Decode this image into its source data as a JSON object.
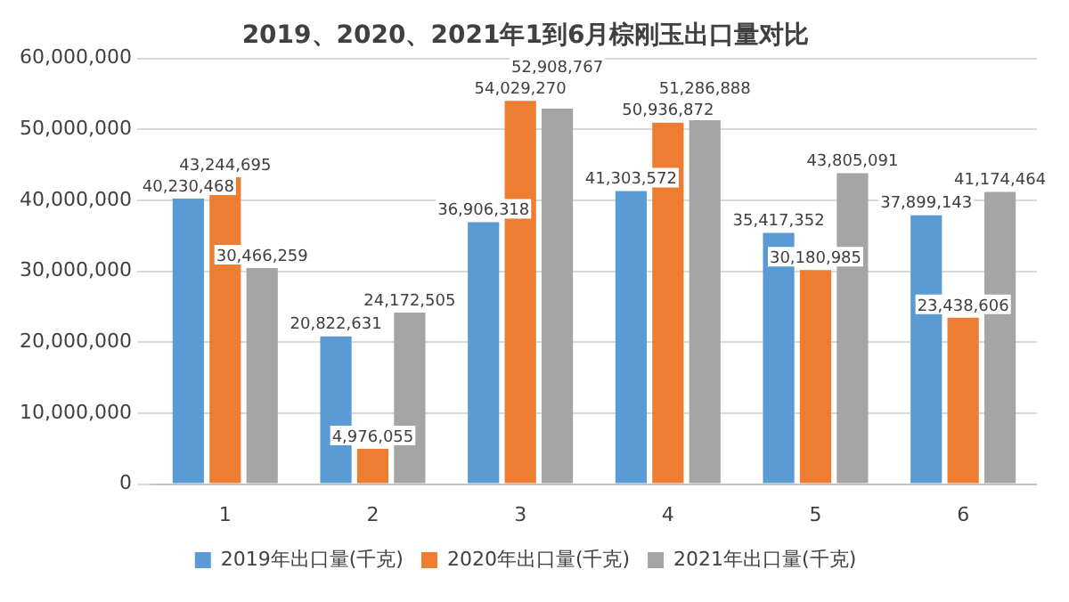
{
  "chart_data": {
    "type": "bar",
    "title": "2019、2020、2021年1到6月棕刚玉出口量对比",
    "categories": [
      "1",
      "2",
      "3",
      "4",
      "5",
      "6"
    ],
    "series": [
      {
        "name": "2019年出口量(千克)",
        "color": "#5b9bd5",
        "values": [
          40230468,
          20822631,
          36906318,
          41303572,
          35417352,
          37899143
        ],
        "value_labels": [
          "40,230,468",
          "20,822,631",
          "36,906,318",
          "41,303,572",
          "35,417,352",
          "37,899,143"
        ]
      },
      {
        "name": "2020年出口量(千克)",
        "color": "#ed7d31",
        "values": [
          43244695,
          4976055,
          54029270,
          50936872,
          30180985,
          23438606
        ],
        "value_labels": [
          "43,244,695",
          "4,976,055",
          "54,029,270",
          "50,936,872",
          "30,180,985",
          "23,438,606"
        ]
      },
      {
        "name": "2021年出口量(千克)",
        "color": "#a5a5a5",
        "values": [
          30466259,
          24172505,
          52908767,
          51286888,
          43805091,
          41174464
        ],
        "value_labels": [
          "30,466,259",
          "24,172,505",
          "52,908,767",
          "51,286,888",
          "43,805,091",
          "41,174,464"
        ]
      }
    ],
    "ylim": [
      0,
      60000000
    ],
    "yticks": [
      {
        "value": 0,
        "label": "0"
      },
      {
        "value": 10000000,
        "label": "10,000,000"
      },
      {
        "value": 20000000,
        "label": "20,000,000"
      },
      {
        "value": 30000000,
        "label": "30,000,000"
      },
      {
        "value": 40000000,
        "label": "40,000,000"
      },
      {
        "value": 50000000,
        "label": "50,000,000"
      },
      {
        "value": 60000000,
        "label": "60,000,000"
      }
    ],
    "grid": "y",
    "legend": "bottom"
  }
}
